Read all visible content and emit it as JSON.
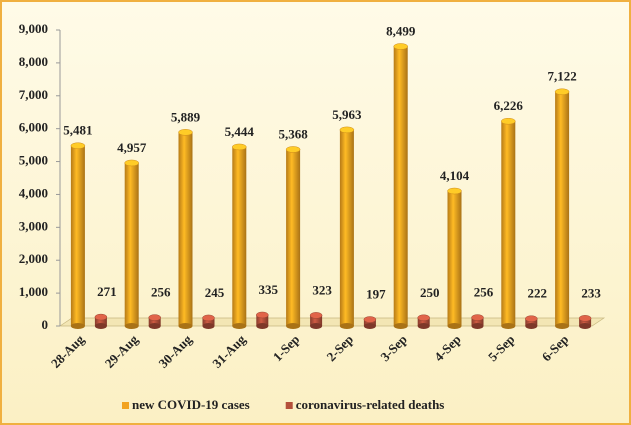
{
  "chart_data": {
    "type": "bar3d",
    "categories": [
      "28-Aug",
      "29-Aug",
      "30-Aug",
      "31-Aug",
      "1-Sep",
      "2-Sep",
      "3-Sep",
      "4-Sep",
      "5-Sep",
      "6-Sep"
    ],
    "series": [
      {
        "name": "new COVID-19 cases",
        "color": "#f2a31f",
        "values": [
          5481,
          4957,
          5889,
          5444,
          5368,
          5963,
          8499,
          4104,
          6226,
          7122
        ],
        "value_labels": [
          "5,481",
          "4,957",
          "5,889",
          "5,444",
          "5,368",
          "5,963",
          "8,499",
          "4,104",
          "6,226",
          "7,122"
        ]
      },
      {
        "name": "coronavirus-related deaths",
        "color": "#b4503a",
        "values": [
          271,
          256,
          245,
          335,
          323,
          197,
          250,
          256,
          222,
          233
        ]
      }
    ],
    "ylim": [
      0,
      9000
    ],
    "yticks": [
      0,
      {
        "value": 1000,
        "label": "1,000"
      },
      {
        "value": 2000,
        "label": "2,000"
      },
      {
        "value": 3000,
        "label": "3,000"
      },
      {
        "value": 4000,
        "label": "4,000"
      },
      {
        "value": 5000,
        "label": "5,000"
      },
      {
        "value": 6000,
        "label": "6,000"
      },
      {
        "value": 7000,
        "label": "7,000"
      },
      {
        "value": 8000,
        "label": "8,000"
      },
      {
        "value": 9000,
        "label": "9,000"
      }
    ],
    "legend": "bottom"
  }
}
